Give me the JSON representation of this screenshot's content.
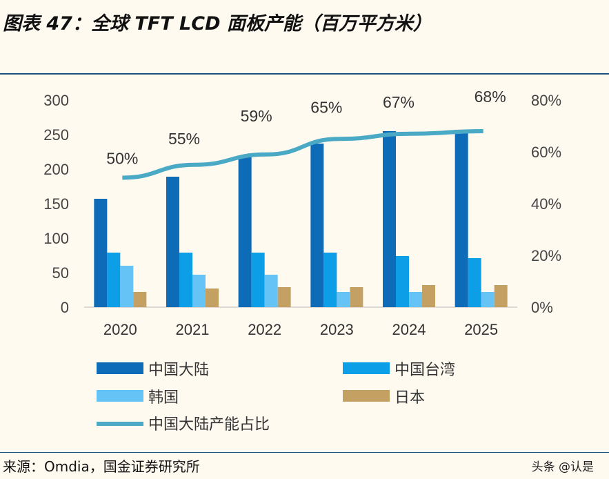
{
  "title": "图表 47：全球 TFT LCD 面板产能（百万平方米）",
  "source": "来源：Omdia，国金证券研究所",
  "watermark": "头条 @认是",
  "chart_data": {
    "type": "bar+line",
    "categories": [
      "2020",
      "2021",
      "2022",
      "2023",
      "2024",
      "2025"
    ],
    "ylim": [
      0,
      300
    ],
    "yticks": [
      "0",
      "50",
      "100",
      "150",
      "200",
      "250",
      "300"
    ],
    "y2lim": [
      0,
      80
    ],
    "y2ticks": [
      "0%",
      "20%",
      "40%",
      "60%",
      "80%"
    ],
    "grid": false,
    "legend": "bottom",
    "series": [
      {
        "name": "中国大陆",
        "type": "bar",
        "color": "#0e6bb8",
        "values": [
          157,
          189,
          220,
          237,
          255,
          257
        ]
      },
      {
        "name": "中国台湾",
        "type": "bar",
        "color": "#0d9ee8",
        "values": [
          79,
          79,
          79,
          79,
          74,
          71
        ]
      },
      {
        "name": "韩国",
        "type": "bar",
        "color": "#66c3f5",
        "values": [
          60,
          47,
          47,
          22,
          22,
          22
        ]
      },
      {
        "name": "日本",
        "type": "bar",
        "color": "#c4a062",
        "values": [
          22,
          27,
          29,
          29,
          32,
          32
        ]
      },
      {
        "name": "中国大陆产能占比",
        "type": "line",
        "axis": "right",
        "color": "#4aa9c4",
        "values": [
          50,
          55,
          59,
          65,
          67,
          68
        ],
        "labels": [
          "50%",
          "55%",
          "59%",
          "65%",
          "67%",
          "68%"
        ]
      }
    ]
  }
}
